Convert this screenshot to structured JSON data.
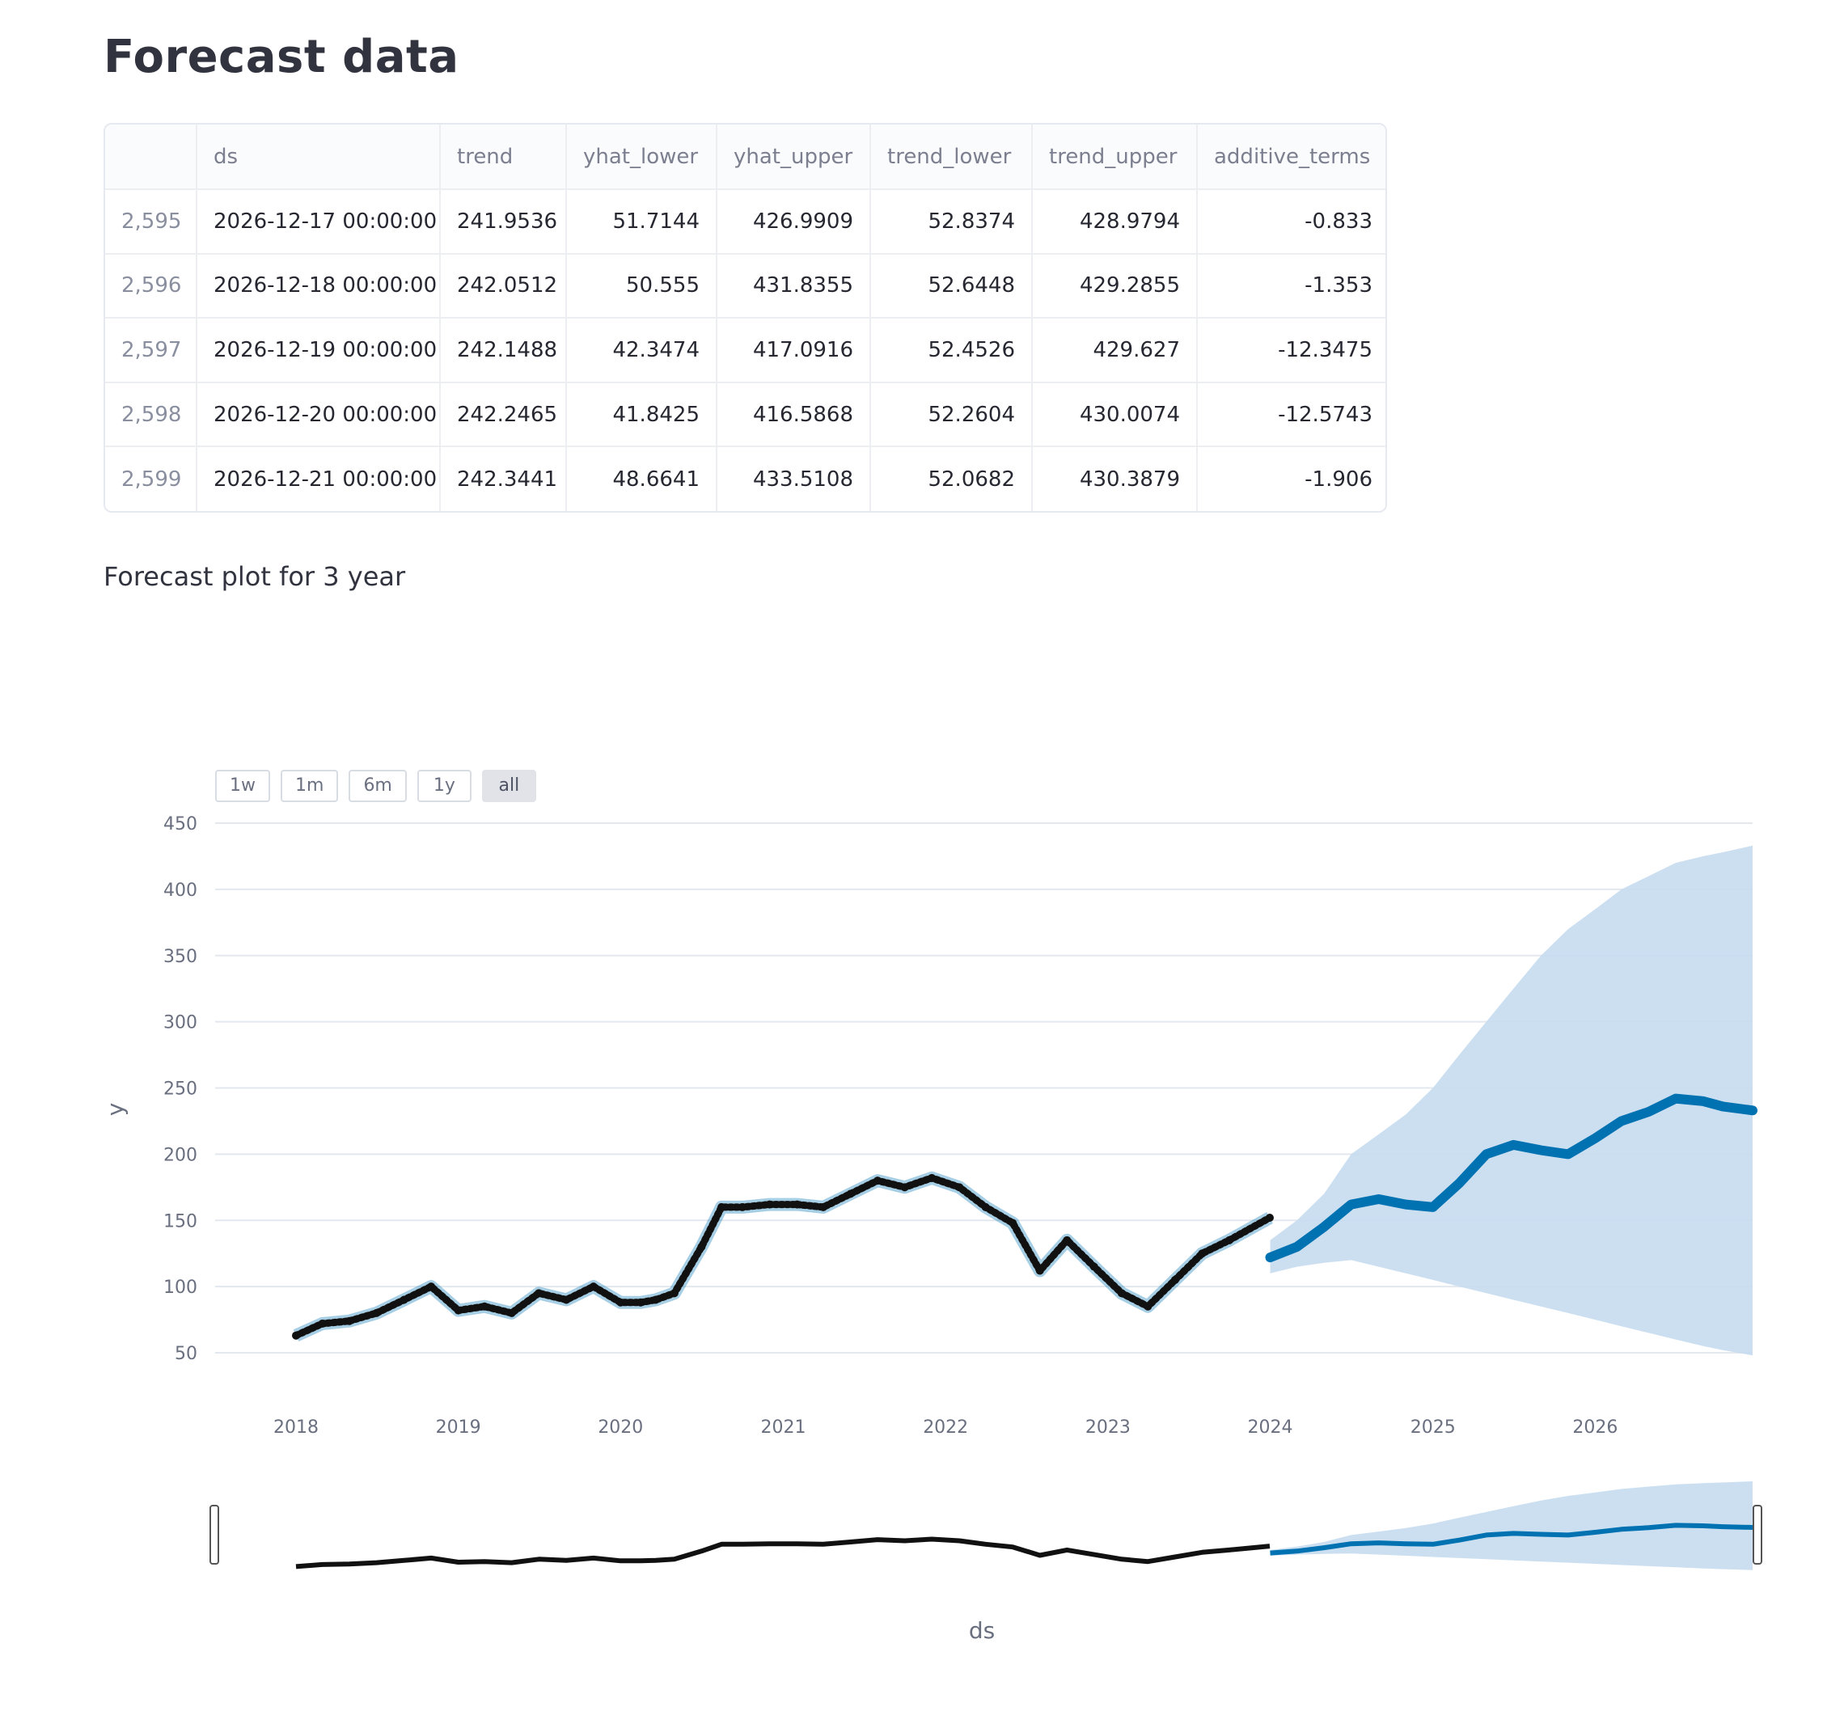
{
  "header": {
    "title": "Forecast data"
  },
  "table": {
    "columns": [
      "",
      "ds",
      "trend",
      "yhat_lower",
      "yhat_upper",
      "trend_lower",
      "trend_upper",
      "additive_terms"
    ],
    "rows": [
      {
        "index": "2,595",
        "ds": "2026-12-17 00:00:00",
        "trend": "241.9536",
        "yhat_lower": "51.7144",
        "yhat_upper": "426.9909",
        "trend_lower": "52.8374",
        "trend_upper": "428.9794",
        "additive_terms": "-0.833"
      },
      {
        "index": "2,596",
        "ds": "2026-12-18 00:00:00",
        "trend": "242.0512",
        "yhat_lower": "50.555",
        "yhat_upper": "431.8355",
        "trend_lower": "52.6448",
        "trend_upper": "429.2855",
        "additive_terms": "-1.353"
      },
      {
        "index": "2,597",
        "ds": "2026-12-19 00:00:00",
        "trend": "242.1488",
        "yhat_lower": "42.3474",
        "yhat_upper": "417.0916",
        "trend_lower": "52.4526",
        "trend_upper": "429.627",
        "additive_terms": "-12.3475"
      },
      {
        "index": "2,598",
        "ds": "2026-12-20 00:00:00",
        "trend": "242.2465",
        "yhat_lower": "41.8425",
        "yhat_upper": "416.5868",
        "trend_lower": "52.2604",
        "trend_upper": "430.0074",
        "additive_terms": "-12.5743"
      },
      {
        "index": "2,599",
        "ds": "2026-12-21 00:00:00",
        "trend": "242.3441",
        "yhat_lower": "48.6641",
        "yhat_upper": "433.5108",
        "trend_lower": "52.0682",
        "trend_upper": "430.3879",
        "additive_terms": "-1.906"
      }
    ]
  },
  "plot": {
    "caption": "Forecast plot for 3 year",
    "range_buttons": [
      {
        "label": "1w",
        "active": false
      },
      {
        "label": "1m",
        "active": false
      },
      {
        "label": "6m",
        "active": false
      },
      {
        "label": "1y",
        "active": false
      },
      {
        "label": "all",
        "active": true
      }
    ]
  },
  "colors": {
    "actual": "#111111",
    "forecast": "#0072b2",
    "band": "#c6dcef"
  },
  "chart_data": {
    "type": "line",
    "title": "",
    "xlabel": "ds",
    "ylabel": "y",
    "x_ticks": [
      "2018",
      "2019",
      "2020",
      "2021",
      "2022",
      "2023",
      "2024",
      "2025",
      "2026"
    ],
    "y_ticks": [
      50,
      100,
      150,
      200,
      250,
      300,
      350,
      400,
      450
    ],
    "xlim": [
      "2018-01-01",
      "2026-12-21"
    ],
    "ylim": [
      50,
      450
    ],
    "grid": true,
    "rangeslider": true,
    "series": [
      {
        "name": "actual",
        "role": "actual",
        "x": [
          "2018-01-01",
          "2018-03-01",
          "2018-05-01",
          "2018-07-01",
          "2018-09-01",
          "2018-11-01",
          "2019-01-01",
          "2019-03-01",
          "2019-05-01",
          "2019-07-01",
          "2019-09-01",
          "2019-11-01",
          "2020-01-01",
          "2020-02-15",
          "2020-03-20",
          "2020-05-01",
          "2020-07-01",
          "2020-08-15",
          "2020-10-01",
          "2020-12-01",
          "2021-02-01",
          "2021-04-01",
          "2021-06-01",
          "2021-08-01",
          "2021-10-01",
          "2021-12-01",
          "2022-02-01",
          "2022-04-01",
          "2022-06-01",
          "2022-08-01",
          "2022-10-01",
          "2022-12-01",
          "2023-02-01",
          "2023-04-01",
          "2023-06-01",
          "2023-08-01",
          "2023-10-01",
          "2023-12-31"
        ],
        "y": [
          63,
          72,
          74,
          80,
          90,
          100,
          82,
          85,
          80,
          95,
          90,
          100,
          88,
          88,
          90,
          95,
          130,
          160,
          160,
          162,
          162,
          160,
          170,
          180,
          175,
          182,
          175,
          160,
          148,
          112,
          135,
          115,
          95,
          85,
          105,
          125,
          135,
          152
        ]
      },
      {
        "name": "forecast",
        "role": "forecast",
        "x": [
          "2024-01-01",
          "2024-03-01",
          "2024-05-01",
          "2024-07-01",
          "2024-09-01",
          "2024-11-01",
          "2025-01-01",
          "2025-03-01",
          "2025-05-01",
          "2025-07-01",
          "2025-09-01",
          "2025-11-01",
          "2026-01-01",
          "2026-03-01",
          "2026-05-01",
          "2026-07-01",
          "2026-09-01",
          "2026-10-15",
          "2026-12-21"
        ],
        "y": [
          122,
          130,
          145,
          162,
          166,
          162,
          160,
          178,
          200,
          207,
          203,
          200,
          212,
          225,
          232,
          242,
          240,
          236,
          233
        ],
        "lower": [
          110,
          115,
          118,
          120,
          115,
          110,
          105,
          100,
          95,
          90,
          85,
          80,
          75,
          70,
          65,
          60,
          55,
          52,
          48
        ],
        "upper": [
          135,
          150,
          170,
          200,
          215,
          230,
          250,
          275,
          300,
          325,
          350,
          370,
          385,
          400,
          410,
          420,
          425,
          428,
          433
        ]
      }
    ]
  }
}
